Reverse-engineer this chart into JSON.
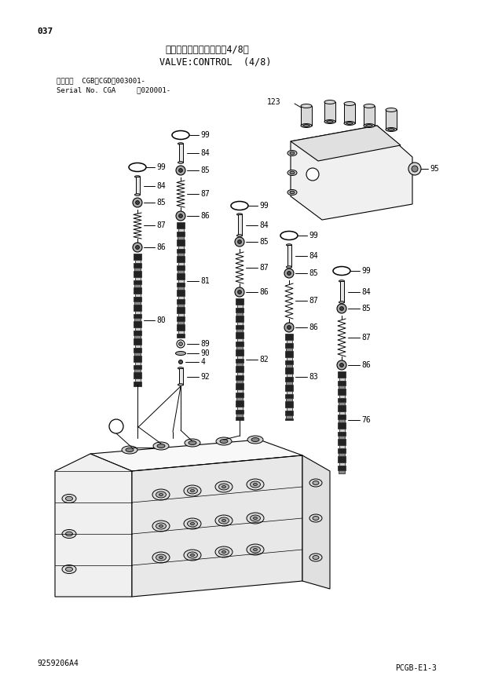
{
  "page_number": "037",
  "title_jp": "バルブ：コントロール（4/8）",
  "title_en": "VALVE:CONTROL  (4/8)",
  "subtitle1": "適用号機  CGB、CGD：003001-",
  "subtitle2": "Serial No. CGA     ：020001-",
  "doc_number": "9259206A4",
  "page_code": "PCGB-E1-3",
  "bg_color": "#ffffff",
  "lc": "#000000"
}
